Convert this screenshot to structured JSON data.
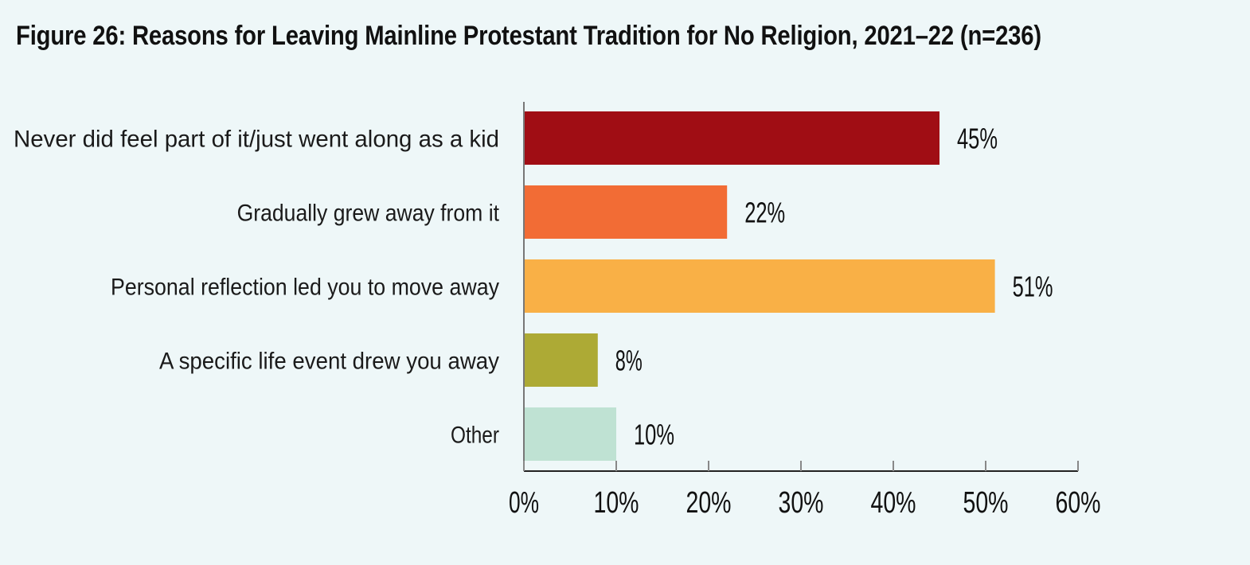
{
  "chart_data": {
    "type": "bar",
    "orientation": "horizontal",
    "title": "Figure 26: Reasons for Leaving Mainline Protestant Tradition for No Religion, 2021–22 (n=236)",
    "categories": [
      "Never did feel part of it/just went along as a kid",
      "Gradually grew away from it",
      "Personal reflection led you to move away",
      "A specific life event drew you away",
      "Other"
    ],
    "values": [
      45,
      22,
      51,
      8,
      10
    ],
    "value_labels": [
      "45%",
      "22%",
      "51%",
      "8%",
      "10%"
    ],
    "colors": [
      "#a00d14",
      "#f26c35",
      "#f9b046",
      "#adaa35",
      "#bfe2d3"
    ],
    "xlim": [
      0,
      60
    ],
    "xticks": [
      0,
      10,
      20,
      30,
      40,
      50,
      60
    ],
    "xtick_labels": [
      "0%",
      "10%",
      "20%",
      "30%",
      "40%",
      "50%",
      "60%"
    ],
    "xlabel": "",
    "ylabel": "",
    "grid": false
  }
}
